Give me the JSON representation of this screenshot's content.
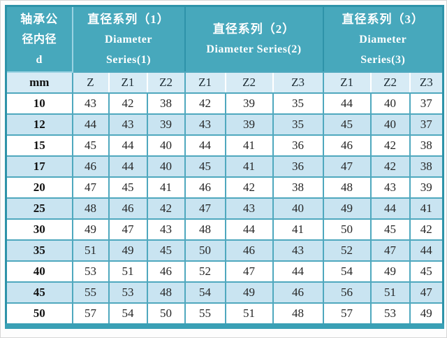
{
  "table": {
    "corner_header": {
      "lines": [
        "轴承公",
        "径内径",
        "d"
      ]
    },
    "unit_label": "mm",
    "groups": [
      {
        "name": "diameter-series-1",
        "lines": [
          "直径系列（1）",
          "Diameter",
          "Series(1)"
        ],
        "columns": [
          "Z",
          "Z1",
          "Z2"
        ]
      },
      {
        "name": "diameter-series-2",
        "lines": [
          "直径系列（2）",
          "Diameter Series(2)"
        ],
        "columns": [
          "Z1",
          "Z2",
          "Z3"
        ]
      },
      {
        "name": "diameter-series-3",
        "lines": [
          "直径系列（3）",
          "Diameter",
          "Series(3)"
        ],
        "columns": [
          "Z1",
          "Z2",
          "Z3"
        ]
      }
    ],
    "rows": [
      {
        "d": "10",
        "values": [
          43,
          42,
          38,
          42,
          39,
          35,
          44,
          40,
          37
        ]
      },
      {
        "d": "12",
        "values": [
          44,
          43,
          39,
          43,
          39,
          35,
          45,
          40,
          37
        ]
      },
      {
        "d": "15",
        "values": [
          45,
          44,
          40,
          44,
          41,
          36,
          46,
          42,
          38
        ]
      },
      {
        "d": "17",
        "values": [
          46,
          44,
          40,
          45,
          41,
          36,
          47,
          42,
          38
        ]
      },
      {
        "d": "20",
        "values": [
          47,
          45,
          41,
          46,
          42,
          38,
          48,
          43,
          39
        ]
      },
      {
        "d": "25",
        "values": [
          48,
          46,
          42,
          47,
          43,
          40,
          49,
          44,
          41
        ]
      },
      {
        "d": "30",
        "values": [
          49,
          47,
          43,
          48,
          44,
          41,
          50,
          45,
          42
        ]
      },
      {
        "d": "35",
        "values": [
          51,
          49,
          45,
          50,
          46,
          43,
          52,
          47,
          44
        ]
      },
      {
        "d": "40",
        "values": [
          53,
          51,
          46,
          52,
          47,
          44,
          54,
          49,
          45
        ]
      },
      {
        "d": "45",
        "values": [
          55,
          53,
          48,
          54,
          49,
          46,
          56,
          51,
          47
        ]
      },
      {
        "d": "50",
        "values": [
          57,
          54,
          50,
          55,
          51,
          48,
          57,
          53,
          49
        ]
      }
    ]
  },
  "colors": {
    "header_teal": "#47a8bc",
    "header_separator": "#2e93a9",
    "grid_teal": "#4fa8be",
    "subheader_blue": "#d7ebf5",
    "alt_row_blue": "#c9e4f1",
    "header_text": "#ffffff",
    "data_text": "#262626"
  }
}
